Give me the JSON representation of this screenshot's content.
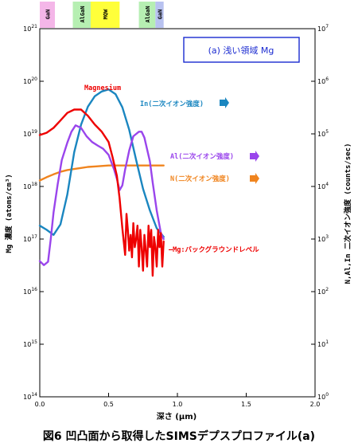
{
  "chart_data": {
    "type": "line",
    "title": "(a) 浅い領域 Mg",
    "xlabel": "深さ (μm)",
    "ylabel_left": "Mg 濃度 (atoms/cm³)",
    "ylabel_right": "N,Al,In 二次イオン強度 (counts/sec)",
    "xlim": [
      0,
      2.0
    ],
    "x_ticks": [
      "0.0",
      "0.5",
      "1.0",
      "1.5",
      "2.0"
    ],
    "ylim_left": [
      100000000000000.0,
      1e+21
    ],
    "ylim_right": [
      1,
      10000000.0
    ],
    "y_scale": "log",
    "y_ticks_left": [
      {
        "base": "10",
        "exp": "21"
      },
      {
        "base": "10",
        "exp": "20"
      },
      {
        "base": "10",
        "exp": "19"
      },
      {
        "base": "10",
        "exp": "18"
      },
      {
        "base": "10",
        "exp": "17"
      },
      {
        "base": "10",
        "exp": "16"
      },
      {
        "base": "10",
        "exp": "15"
      },
      {
        "base": "10",
        "exp": "14"
      }
    ],
    "y_ticks_right": [
      {
        "base": "10",
        "exp": "7"
      },
      {
        "base": "10",
        "exp": "6"
      },
      {
        "base": "10",
        "exp": "5"
      },
      {
        "base": "10",
        "exp": "4"
      },
      {
        "base": "10",
        "exp": "3"
      },
      {
        "base": "10",
        "exp": "2"
      },
      {
        "base": "10",
        "exp": "1"
      },
      {
        "base": "10",
        "exp": "0"
      }
    ],
    "layers": [
      {
        "label": "GaN",
        "x_start": 0.0,
        "x_end": 0.11,
        "color": "#f4b6e8"
      },
      {
        "label": "AlGaN",
        "x_start": 0.24,
        "x_end": 0.37,
        "color": "#b6efb2"
      },
      {
        "label": "MQW",
        "x_start": 0.37,
        "x_end": 0.58,
        "color": "#ffff3a"
      },
      {
        "label": "AlGaN",
        "x_start": 0.72,
        "x_end": 0.84,
        "color": "#b6efb2"
      },
      {
        "label": "GaN",
        "x_start": 0.84,
        "x_end": 0.9,
        "color": "#b8c2f0"
      }
    ],
    "grid": false,
    "series": [
      {
        "name": "Magnesium",
        "color": "#ee0000",
        "axis": "left",
        "x": [
          0.0,
          0.05,
          0.1,
          0.15,
          0.2,
          0.25,
          0.3,
          0.35,
          0.4,
          0.45,
          0.5,
          0.53,
          0.56,
          0.58,
          0.6,
          0.62,
          0.63,
          0.64,
          0.65,
          0.66,
          0.67,
          0.68,
          0.69,
          0.7,
          0.71,
          0.72,
          0.73,
          0.74,
          0.75,
          0.76,
          0.77,
          0.78,
          0.79,
          0.8,
          0.81,
          0.82,
          0.83,
          0.84,
          0.85,
          0.86,
          0.87,
          0.88,
          0.89,
          0.9
        ],
        "y": [
          9.5e+18,
          1.05e+19,
          1.3e+19,
          1.8e+19,
          2.5e+19,
          2.9e+19,
          2.9e+19,
          2.2e+19,
          1.5e+19,
          1.1e+19,
          7e+18,
          3.5e+18,
          1.6e+18,
          6e+17,
          1.6e+17,
          5e+16,
          3e+17,
          1.5e+17,
          6e+16,
          1.2e+17,
          4.5e+16,
          2e+17,
          7e+16,
          1e+17,
          1.8e+17,
          3e+16,
          1.5e+17,
          7e+16,
          2.5e+16,
          1.2e+17,
          6e+16,
          3e+16,
          1.8e+17,
          7e+16,
          1.5e+17,
          2e+16,
          1.1e+17,
          7e+16,
          3e+16,
          1.5e+17,
          7e+16,
          1.3e+17,
          3e+16,
          9e+16
        ]
      },
      {
        "name": "In(二次イオン強度)",
        "color": "#1a86c0",
        "axis": "right",
        "x": [
          0.0,
          0.05,
          0.1,
          0.15,
          0.2,
          0.25,
          0.3,
          0.35,
          0.4,
          0.45,
          0.5,
          0.55,
          0.6,
          0.65,
          0.7,
          0.75,
          0.8,
          0.85,
          0.9
        ],
        "y": [
          1800,
          1500,
          1200,
          1900,
          7000,
          45000,
          150000,
          330000,
          520000,
          640000,
          700000,
          570000,
          320000,
          120000,
          32000,
          9000,
          3500,
          1600,
          1100
        ]
      },
      {
        "name": "Al(二次イオン強度)",
        "color": "#9a45ec",
        "axis": "right",
        "x": [
          0.0,
          0.03,
          0.06,
          0.08,
          0.1,
          0.13,
          0.16,
          0.2,
          0.23,
          0.26,
          0.3,
          0.34,
          0.38,
          0.42,
          0.46,
          0.5,
          0.54,
          0.56,
          0.58,
          0.6,
          0.62,
          0.65,
          0.68,
          0.72,
          0.74,
          0.76,
          0.8,
          0.82,
          0.85,
          0.88,
          0.9
        ],
        "y": [
          380,
          320,
          370,
          1000,
          3200,
          11000,
          32000,
          68000,
          110000,
          145000,
          130000,
          90000,
          70000,
          60000,
          52000,
          40000,
          21000,
          14000,
          8500,
          10500,
          21000,
          48000,
          90000,
          110000,
          110000,
          85000,
          30000,
          12000,
          3500,
          1300,
          1000
        ]
      },
      {
        "name": "N(二次イオン強度)",
        "color": "#f0841e",
        "axis": "right",
        "x": [
          0.0,
          0.05,
          0.1,
          0.15,
          0.2,
          0.25,
          0.3,
          0.35,
          0.4,
          0.45,
          0.5,
          0.55,
          0.6,
          0.65,
          0.7,
          0.75,
          0.8,
          0.85,
          0.9
        ],
        "y": [
          13000,
          15000,
          17000,
          19000,
          20500,
          21500,
          22500,
          23500,
          24000,
          24500,
          25000,
          25000,
          25000,
          25000,
          25000,
          25000,
          25000,
          25000,
          25000
        ]
      }
    ],
    "annotations": {
      "magnesium": "Magnesium",
      "in": "In(二次イオン強度)",
      "al": "Al(二次イオン強度)",
      "n": "N(二次イオン強度)",
      "background": "—Mg:バックグラウンドレベル"
    }
  },
  "caption": "図6  凹凸面から取得したSIMSデプスプロファイル(a)"
}
